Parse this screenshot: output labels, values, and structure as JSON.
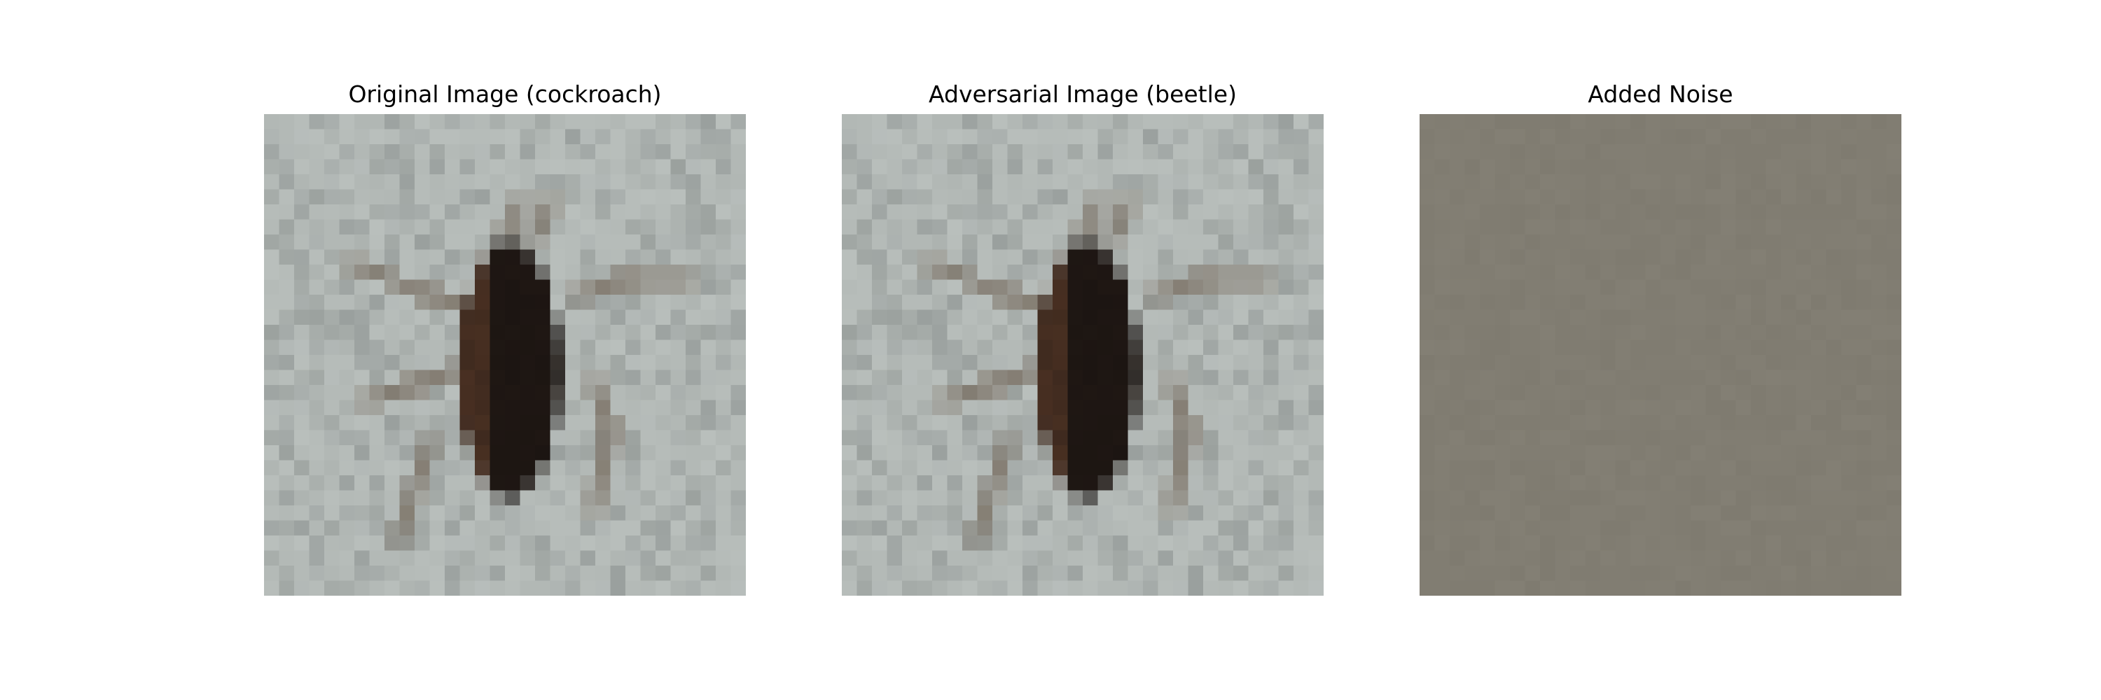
{
  "figure": {
    "panels": [
      {
        "title": "Original Image (cockroach)",
        "image": "cockroach-photo"
      },
      {
        "title": "Adversarial Image (beetle)",
        "image": "cockroach-photo"
      },
      {
        "title": "Added Noise",
        "image": "noise-field"
      }
    ]
  },
  "colors": {
    "background": "#ffffff",
    "noise": "#817d72",
    "surface_light": "#b9bfbc",
    "surface_dark": "#8f9593",
    "insect_body": "#1f1713",
    "insect_shell": "#5a3a28",
    "insect_legs": "#7b7165"
  }
}
